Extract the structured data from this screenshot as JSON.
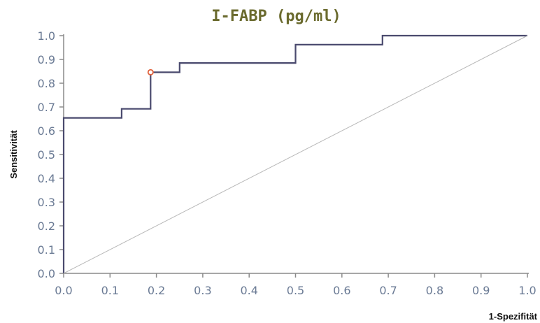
{
  "chart_data": {
    "type": "line",
    "title": "I-FABP (pg/ml)",
    "xlabel": "1-Spezifität",
    "ylabel": "Sensitivität",
    "xlim": [
      0,
      1
    ],
    "ylim": [
      0,
      1
    ],
    "x_ticks": [
      "0.0",
      "0.1",
      "0.2",
      "0.3",
      "0.4",
      "0.5",
      "0.6",
      "0.7",
      "0.8",
      "0.9",
      "1.0"
    ],
    "y_ticks": [
      "0.0",
      "0.1",
      "0.2",
      "0.3",
      "0.4",
      "0.5",
      "0.6",
      "0.7",
      "0.8",
      "0.9",
      "1.0"
    ],
    "grid": false,
    "series": [
      {
        "role": "roc-curve",
        "color": "#4a4a6e",
        "x": [
          0,
          0,
          0.004,
          0.004,
          0.125,
          0.125,
          0.1875,
          0.1875,
          0.25,
          0.25,
          0.5,
          0.5,
          0.6875,
          0.6875,
          1.0
        ],
        "y": [
          0,
          0.654,
          0.654,
          0.654,
          0.654,
          0.692,
          0.692,
          0.846,
          0.846,
          0.885,
          0.885,
          0.962,
          0.962,
          1.0,
          1.0
        ]
      },
      {
        "role": "reference-diagonal",
        "color": "#b8b8b8",
        "x": [
          0,
          1
        ],
        "y": [
          0,
          1
        ]
      }
    ],
    "highlight_point": {
      "x": 0.1875,
      "y": 0.846,
      "color": "#e0603a"
    }
  }
}
